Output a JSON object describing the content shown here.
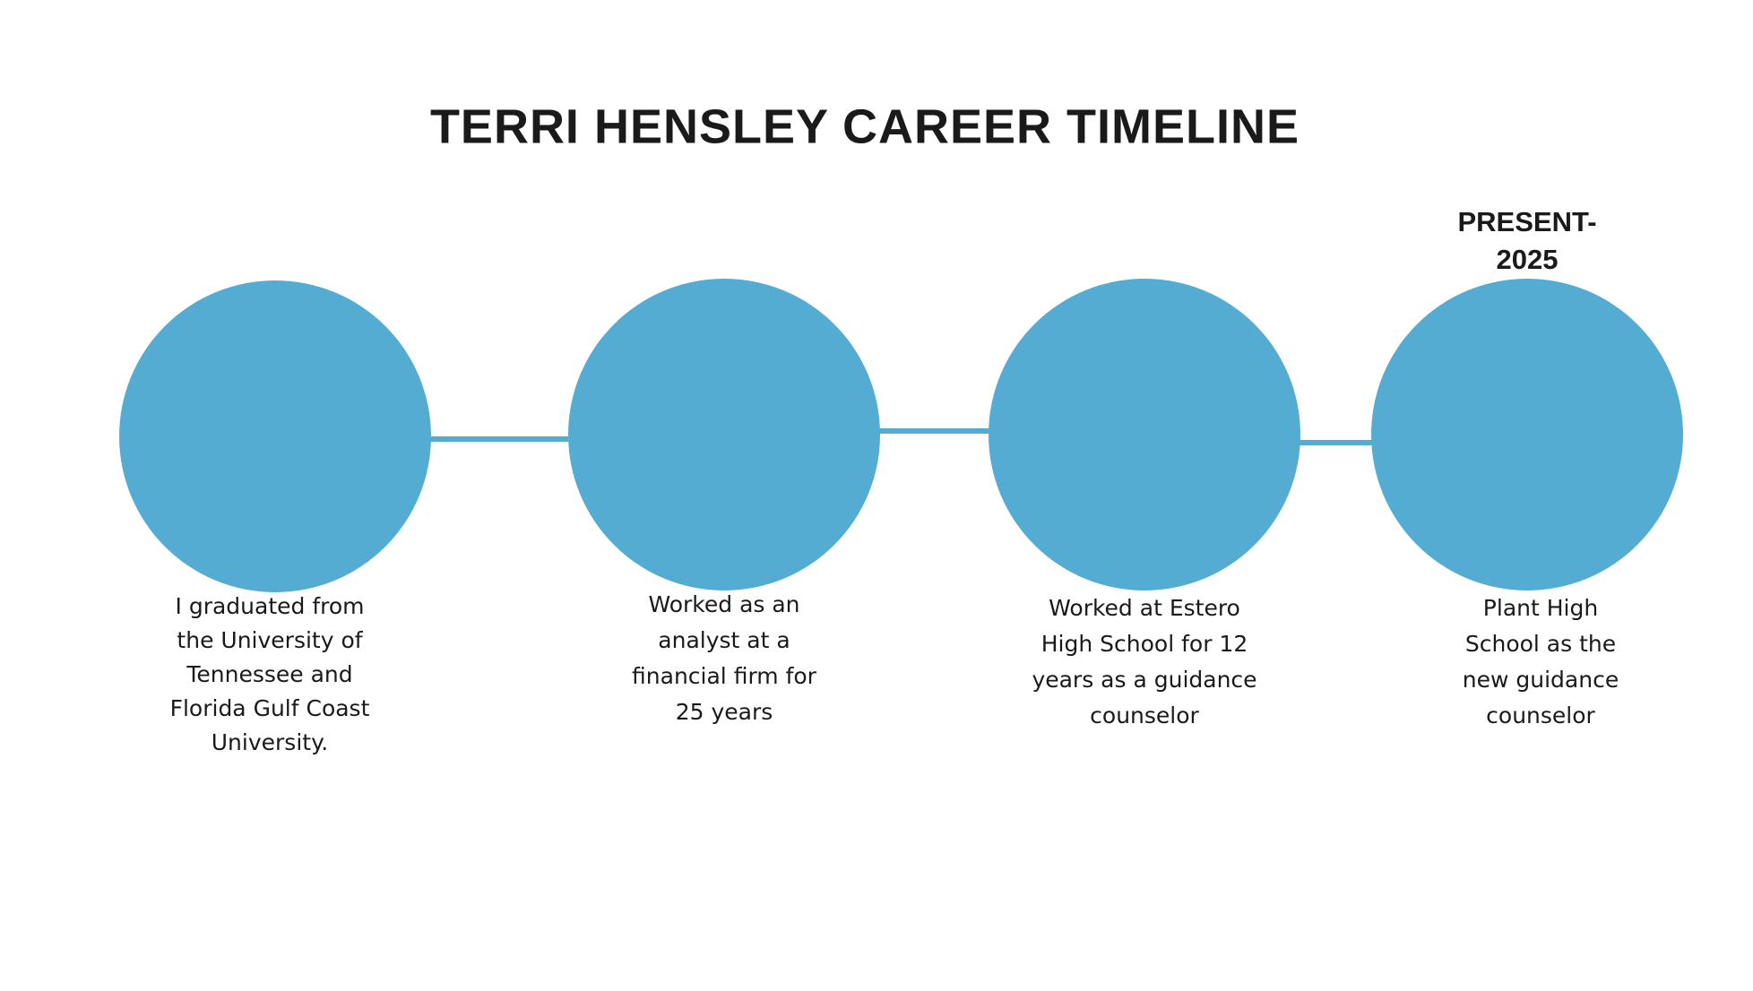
{
  "title": "TERRI HENSLEY CAREER TIMELINE",
  "milestones": [
    {
      "description": [
        "I graduated from",
        "the University of",
        "Tennessee and",
        "Florida Gulf Coast",
        "University."
      ]
    },
    {
      "description": [
        "Worked as an",
        "analyst at a",
        "financial firm for",
        "25 years"
      ]
    },
    {
      "description": [
        "Worked at Estero",
        "High School for 12",
        "years as  a guidance",
        "counselor"
      ]
    },
    {
      "label": [
        "PRESENT-",
        "2025"
      ],
      "description": [
        "Plant High",
        "School as the",
        "new guidance",
        "counselor"
      ]
    }
  ]
}
